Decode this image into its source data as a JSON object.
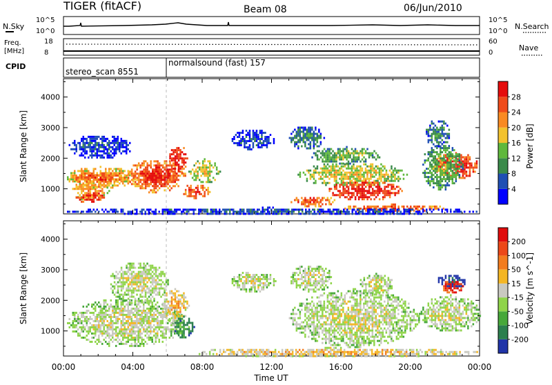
{
  "header": {
    "station": "TIGER (fitACF)",
    "beam": "Beam 08",
    "date": "06/Jun/2010"
  },
  "status_panels": {
    "nsky": {
      "label": "N.Sky",
      "left_ticks": [
        "10^5",
        "10^0"
      ],
      "right_ticks": [
        "10^5",
        "10^0"
      ],
      "right_label": "N.Search"
    },
    "freq": {
      "label_lines": [
        "Freq.",
        "[MHz]"
      ],
      "left_ticks": [
        "18",
        "8"
      ],
      "right_ticks": [
        "60",
        "0"
      ],
      "right_label": "Nave"
    },
    "cpid": {
      "label": "CPID",
      "programs": [
        {
          "name": "stereo_scan 8551",
          "start_hour": 0,
          "end_hour": 6
        },
        {
          "name": "normalsound (fast) 157",
          "start_hour": 6,
          "end_hour": 24
        }
      ]
    }
  },
  "chart_data": [
    {
      "type": "heatmap",
      "title": "",
      "xlabel": "",
      "ylabel": "Slant Range [km]",
      "xlim": [
        0,
        24
      ],
      "ylim": [
        180,
        4600
      ],
      "yticks": [
        1000,
        2000,
        3000,
        4000
      ],
      "colorbar": {
        "label": "Power [dB]",
        "ticks": [
          "4",
          "8",
          "12",
          "16",
          "20",
          "24",
          "28"
        ],
        "colors": [
          "#0000ff",
          "#1f4fb4",
          "#3a8a4a",
          "#5fb83c",
          "#f2c22e",
          "#f98a22",
          "#ef4b1a",
          "#e50c0c"
        ]
      },
      "series": [
        {
          "x0": 0.4,
          "x1": 2.6,
          "y0": 650,
          "y1": 1300,
          "level": 5
        },
        {
          "x0": 0.7,
          "x1": 2.3,
          "y0": 550,
          "y1": 950,
          "level": 7
        },
        {
          "x0": 0.1,
          "x1": 4.2,
          "y0": 1050,
          "y1": 1750,
          "level": 5
        },
        {
          "x0": 0.3,
          "x1": 3.8,
          "y0": 1200,
          "y1": 1600,
          "level": 6
        },
        {
          "x0": 3.6,
          "x1": 7.0,
          "y0": 900,
          "y1": 2000,
          "level": 6
        },
        {
          "x0": 4.3,
          "x1": 6.6,
          "y0": 1100,
          "y1": 1800,
          "level": 7
        },
        {
          "x0": 6.0,
          "x1": 7.1,
          "y0": 1500,
          "y1": 2500,
          "level": 7
        },
        {
          "x0": 6.8,
          "x1": 8.4,
          "y0": 700,
          "y1": 1200,
          "level": 6
        },
        {
          "x0": 7.2,
          "x1": 9.0,
          "y0": 1200,
          "y1": 2000,
          "level": 4
        },
        {
          "x0": 0.2,
          "x1": 4.0,
          "y0": 2000,
          "y1": 2800,
          "level": 1
        },
        {
          "x0": 9.6,
          "x1": 12.2,
          "y0": 2300,
          "y1": 3000,
          "level": 1
        },
        {
          "x0": 13.0,
          "x1": 15.0,
          "y0": 2300,
          "y1": 3100,
          "level": 2
        },
        {
          "x0": 13.5,
          "x1": 19.8,
          "y0": 1100,
          "y1": 1900,
          "level": 4
        },
        {
          "x0": 15.2,
          "x1": 19.5,
          "y0": 650,
          "y1": 1300,
          "level": 7
        },
        {
          "x0": 14.2,
          "x1": 18.3,
          "y0": 1850,
          "y1": 2400,
          "level": 3
        },
        {
          "x0": 13.0,
          "x1": 15.7,
          "y0": 450,
          "y1": 800,
          "level": 6
        },
        {
          "x0": 16.0,
          "x1": 22.0,
          "y0": 280,
          "y1": 520,
          "level": 6
        },
        {
          "x0": 21.3,
          "x1": 23.9,
          "y0": 1350,
          "y1": 2200,
          "level": 7
        },
        {
          "x0": 20.6,
          "x1": 23.0,
          "y0": 1000,
          "y1": 2500,
          "level": 3
        },
        {
          "x0": 20.8,
          "x1": 22.3,
          "y0": 2400,
          "y1": 3300,
          "level": 2
        },
        {
          "x0": 0.0,
          "x1": 24.0,
          "y0": 180,
          "y1": 420,
          "level": 1
        }
      ]
    },
    {
      "type": "heatmap",
      "title": "",
      "xlabel": "Time UT",
      "ylabel": "Slant Range [km]",
      "xlim": [
        0,
        24
      ],
      "ylim": [
        180,
        4600
      ],
      "xticks": [
        "00:00",
        "04:00",
        "08:00",
        "12:00",
        "16:00",
        "20:00",
        "00:00"
      ],
      "yticks": [
        1000,
        2000,
        3000,
        4000
      ],
      "colorbar": {
        "label": "Velocity [m s^-1]",
        "ticks": [
          "200",
          "100",
          "50",
          "15",
          "-15",
          "-50",
          "-100",
          "-200"
        ],
        "colors": [
          "#2034a8",
          "#2c7f4e",
          "#47a83a",
          "#8fd44a",
          "#c9c9c0",
          "#f4b624",
          "#f37c1e",
          "#ec4818",
          "#e00c0c"
        ]
      },
      "series": [
        {
          "x0": 0.2,
          "x1": 7.0,
          "y0": 500,
          "y1": 2100,
          "level": 4
        },
        {
          "x0": 5.6,
          "x1": 7.2,
          "y0": 1300,
          "y1": 2400,
          "level": 5
        },
        {
          "x0": 6.3,
          "x1": 7.5,
          "y0": 800,
          "y1": 1500,
          "level": 2
        },
        {
          "x0": 2.6,
          "x1": 6.0,
          "y0": 1900,
          "y1": 3300,
          "level": 4
        },
        {
          "x0": 9.6,
          "x1": 12.2,
          "y0": 2300,
          "y1": 3000,
          "level": 4
        },
        {
          "x0": 13.0,
          "x1": 15.5,
          "y0": 2300,
          "y1": 3200,
          "level": 4
        },
        {
          "x0": 13.0,
          "x1": 20.5,
          "y0": 500,
          "y1": 2400,
          "level": 4
        },
        {
          "x0": 17.0,
          "x1": 19.0,
          "y0": 2200,
          "y1": 2900,
          "level": 4
        },
        {
          "x0": 20.5,
          "x1": 24.0,
          "y0": 1000,
          "y1": 2200,
          "level": 4
        },
        {
          "x0": 21.5,
          "x1": 23.2,
          "y0": 2400,
          "y1": 2900,
          "level": 0
        },
        {
          "x0": 21.8,
          "x1": 23.0,
          "y0": 2250,
          "y1": 2700,
          "level": 8
        },
        {
          "x0": 7.0,
          "x1": 24.0,
          "y0": 180,
          "y1": 480,
          "level": 5
        }
      ]
    }
  ]
}
